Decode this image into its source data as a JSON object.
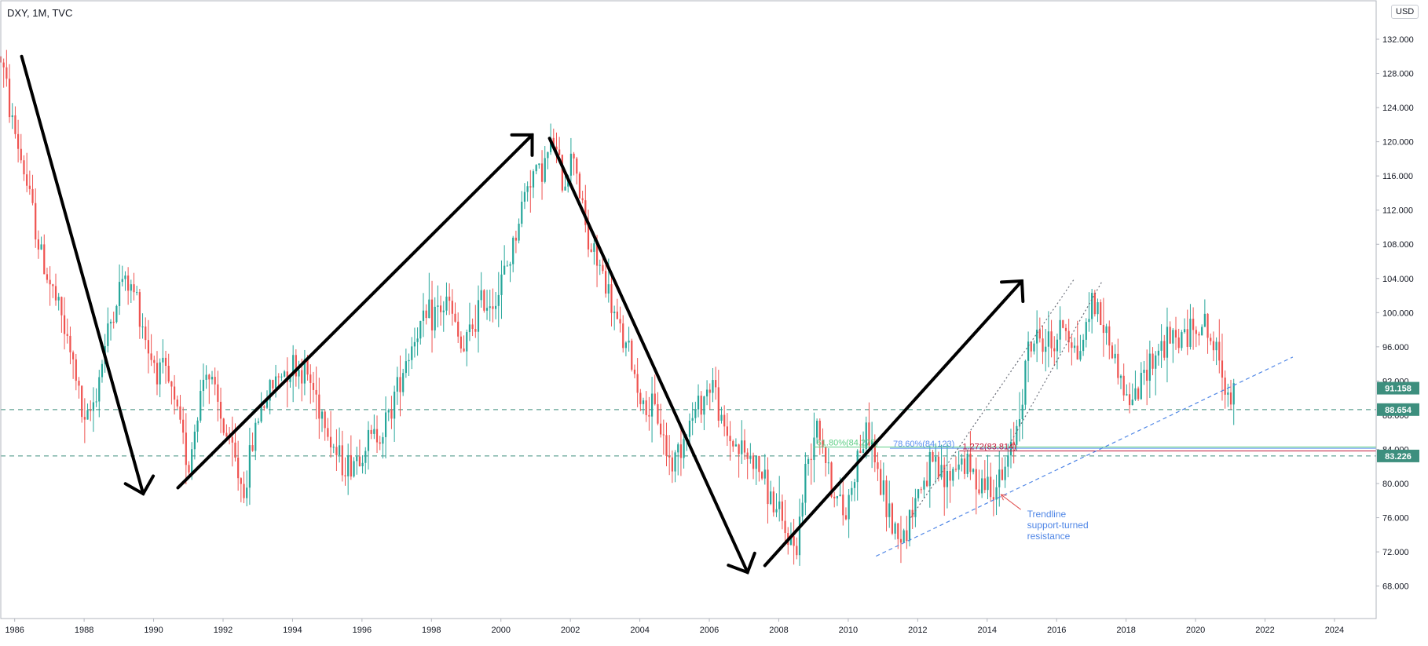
{
  "chart_data": {
    "type": "candlestick",
    "title": "DXY, 1M, TVC",
    "currency": "USD",
    "x_axis": {
      "range": [
        1985.6,
        2025.2
      ],
      "tick_labels": [
        "1986",
        "1988",
        "1990",
        "1992",
        "1994",
        "1996",
        "1998",
        "2000",
        "2002",
        "2004",
        "2006",
        "2008",
        "2010",
        "2012",
        "2014",
        "2016",
        "2018",
        "2020",
        "2022",
        "2024"
      ],
      "tick_years": [
        1986,
        1988,
        1990,
        1992,
        1994,
        1996,
        1998,
        2000,
        2002,
        2004,
        2006,
        2008,
        2010,
        2012,
        2014,
        2016,
        2018,
        2020,
        2022,
        2024
      ]
    },
    "y_axis": {
      "range": [
        64.2,
        136.5
      ],
      "position": "right",
      "tick_labels": [
        "132.000",
        "128.000",
        "124.000",
        "120.000",
        "116.000",
        "112.000",
        "108.000",
        "104.000",
        "100.000",
        "96.000",
        "92.000",
        "88.000",
        "84.000",
        "80.000",
        "76.000",
        "72.000",
        "68.000"
      ],
      "tick_values": [
        132,
        128,
        124,
        120,
        116,
        112,
        108,
        104,
        100,
        96,
        92,
        88,
        84,
        80,
        76,
        72,
        68
      ]
    },
    "grid": false,
    "colors": {
      "up": "#26a69a",
      "down": "#ef5350",
      "level": "#3d8f7e",
      "fib_green": "#5fcf86",
      "fib_blue": "#5b8ff0",
      "fib_red": "#c2183a",
      "trend": "#4f86e6",
      "arrow": "#000000"
    },
    "price_anchors": [
      [
        1985.6,
        130
      ],
      [
        1985.9,
        123
      ],
      [
        1986.3,
        116
      ],
      [
        1986.8,
        106
      ],
      [
        1987.3,
        100
      ],
      [
        1987.8,
        92
      ],
      [
        1988.0,
        86
      ],
      [
        1988.3,
        90
      ],
      [
        1988.7,
        98
      ],
      [
        1989.1,
        104
      ],
      [
        1989.5,
        102
      ],
      [
        1989.9,
        95
      ],
      [
        1990.4,
        92
      ],
      [
        1990.8,
        86
      ],
      [
        1991.0,
        82
      ],
      [
        1991.5,
        94
      ],
      [
        1991.9,
        88
      ],
      [
        1992.3,
        83
      ],
      [
        1992.6,
        79
      ],
      [
        1993.0,
        88
      ],
      [
        1993.5,
        92
      ],
      [
        1993.9,
        94
      ],
      [
        1994.4,
        93
      ],
      [
        1994.9,
        88
      ],
      [
        1995.3,
        83
      ],
      [
        1995.6,
        82
      ],
      [
        1996.2,
        85
      ],
      [
        1996.7,
        87
      ],
      [
        1997.2,
        94
      ],
      [
        1997.6,
        98
      ],
      [
        1998.1,
        100
      ],
      [
        1998.5,
        101
      ],
      [
        1998.9,
        95
      ],
      [
        1999.4,
        101
      ],
      [
        1999.9,
        102
      ],
      [
        2000.3,
        107
      ],
      [
        2000.8,
        116
      ],
      [
        2001.2,
        117
      ],
      [
        2001.5,
        120
      ],
      [
        2001.8,
        115
      ],
      [
        2002.1,
        119
      ],
      [
        2002.5,
        108
      ],
      [
        2002.9,
        105
      ],
      [
        2003.3,
        99
      ],
      [
        2003.7,
        95
      ],
      [
        2004.1,
        89
      ],
      [
        2004.5,
        88
      ],
      [
        2004.9,
        82
      ],
      [
        2005.3,
        86
      ],
      [
        2005.8,
        90
      ],
      [
        2006.1,
        92
      ],
      [
        2006.4,
        86
      ],
      [
        2006.9,
        84
      ],
      [
        2007.4,
        82
      ],
      [
        2007.9,
        77
      ],
      [
        2008.2,
        74
      ],
      [
        2008.5,
        72.5
      ],
      [
        2008.8,
        82
      ],
      [
        2009.1,
        88
      ],
      [
        2009.5,
        80
      ],
      [
        2009.9,
        76
      ],
      [
        2010.3,
        84
      ],
      [
        2010.6,
        86
      ],
      [
        2010.9,
        80
      ],
      [
        2011.3,
        75
      ],
      [
        2011.6,
        74
      ],
      [
        2012.0,
        79
      ],
      [
        2012.4,
        82
      ],
      [
        2012.8,
        80
      ],
      [
        2013.2,
        83
      ],
      [
        2013.6,
        81
      ],
      [
        2014.0,
        80
      ],
      [
        2014.4,
        80
      ],
      [
        2014.7,
        84
      ],
      [
        2014.9,
        88
      ],
      [
        2015.2,
        96
      ],
      [
        2015.5,
        97
      ],
      [
        2015.9,
        96
      ],
      [
        2016.2,
        99
      ],
      [
        2016.6,
        95
      ],
      [
        2016.9,
        99
      ],
      [
        2017.0,
        102
      ],
      [
        2017.4,
        98
      ],
      [
        2017.8,
        93
      ],
      [
        2018.0,
        90
      ],
      [
        2018.3,
        90
      ],
      [
        2018.6,
        94
      ],
      [
        2019.0,
        96
      ],
      [
        2019.5,
        97
      ],
      [
        2019.9,
        98
      ],
      [
        2020.2,
        99
      ],
      [
        2020.5,
        96
      ],
      [
        2020.8,
        93
      ],
      [
        2021.0,
        90
      ],
      [
        2021.1,
        91.2
      ]
    ],
    "horizontal_levels": [
      {
        "value": 88.654,
        "label": "88.654"
      },
      {
        "value": 83.226,
        "label": "83.226"
      }
    ],
    "last_price": {
      "value": 91.158,
      "label": "91.158"
    },
    "fibonacci_levels": [
      {
        "label": "61.80%(84.275)",
        "value": 84.275,
        "from_year": 2009.0,
        "color": "#5fcf86"
      },
      {
        "label": "78.60%(84.123)",
        "value": 84.123,
        "from_year": 2011.2,
        "color": "#5b8ff0"
      },
      {
        "label": "1.272(83.814)",
        "value": 83.814,
        "from_year": 2013.2,
        "color": "#c2183a"
      }
    ],
    "trendline": {
      "from": [
        2010.8,
        71.5
      ],
      "to": [
        2022.8,
        94.8
      ],
      "style": "dashed"
    },
    "channel_lines": [
      {
        "from": [
          2011.8,
          76.0
        ],
        "to": [
          2016.5,
          103.9
        ]
      },
      {
        "from": [
          2014.7,
          85.0
        ],
        "to": [
          2017.3,
          103.6
        ]
      }
    ],
    "arrows": [
      {
        "from": [
          1986.2,
          130.0
        ],
        "to": [
          1989.7,
          78.8
        ]
      },
      {
        "from": [
          1990.7,
          79.5
        ],
        "to": [
          2000.9,
          120.8
        ]
      },
      {
        "from": [
          2001.4,
          120.4
        ],
        "to": [
          2007.1,
          69.6
        ]
      },
      {
        "from": [
          2007.6,
          70.4
        ],
        "to": [
          2015.0,
          103.7
        ]
      }
    ],
    "annotation": {
      "text_lines": [
        "Trendline",
        "support-turned",
        "resistance"
      ],
      "pointer_to": [
        2014.4,
        78.7
      ]
    }
  }
}
